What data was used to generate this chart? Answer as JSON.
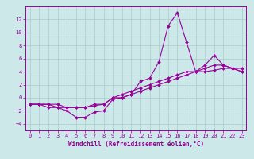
{
  "bg_color": "#cce8e8",
  "grid_color": "#aacccc",
  "line_color": "#990099",
  "xlabel": "Windchill (Refroidissement éolien,°C)",
  "xlabel_color": "#990099",
  "tick_color": "#990099",
  "xlim": [
    -0.5,
    23.5
  ],
  "ylim": [
    -5,
    14
  ],
  "yticks": [
    -4,
    -2,
    0,
    2,
    4,
    6,
    8,
    10,
    12
  ],
  "xticks": [
    0,
    1,
    2,
    3,
    4,
    5,
    6,
    7,
    8,
    9,
    10,
    11,
    12,
    13,
    14,
    15,
    16,
    17,
    18,
    19,
    20,
    21,
    22,
    23
  ],
  "line1_x": [
    0,
    1,
    2,
    3,
    4,
    5,
    6,
    7,
    8,
    9,
    10,
    11,
    12,
    13,
    14,
    15,
    16,
    17,
    18,
    19,
    20,
    21,
    22,
    23
  ],
  "line1_y": [
    -1,
    -1,
    -1.5,
    -1.5,
    -2,
    -3,
    -3,
    -2.2,
    -2,
    -0.2,
    0,
    0.5,
    2.5,
    3,
    5.5,
    11,
    13,
    8.5,
    4,
    5,
    6.5,
    5,
    4.5,
    4
  ],
  "line2_x": [
    0,
    1,
    2,
    3,
    4,
    5,
    6,
    7,
    8,
    9,
    10,
    11,
    12,
    13,
    14,
    15,
    16,
    17,
    18,
    19,
    20,
    21,
    22,
    23
  ],
  "line2_y": [
    -1,
    -1,
    -1,
    -1.5,
    -1.5,
    -1.5,
    -1.5,
    -1,
    -1,
    0,
    0.5,
    1,
    1.5,
    2,
    2.5,
    3,
    3.5,
    4,
    4,
    4.5,
    5,
    5,
    4.5,
    4
  ],
  "line3_x": [
    0,
    1,
    2,
    3,
    4,
    5,
    6,
    7,
    8,
    9,
    10,
    11,
    12,
    13,
    14,
    15,
    16,
    17,
    18,
    19,
    20,
    21,
    22,
    23
  ],
  "line3_y": [
    -1,
    -1,
    -1,
    -1,
    -1.5,
    -1.5,
    -1.5,
    -1.2,
    -1,
    0,
    0,
    0.5,
    1,
    1.5,
    2,
    2.5,
    3,
    3.5,
    4,
    4,
    4.2,
    4.5,
    4.5,
    4.5
  ],
  "tick_fontsize": 5.0,
  "xlabel_fontsize": 5.5,
  "figsize": [
    3.2,
    2.0
  ],
  "dpi": 100
}
